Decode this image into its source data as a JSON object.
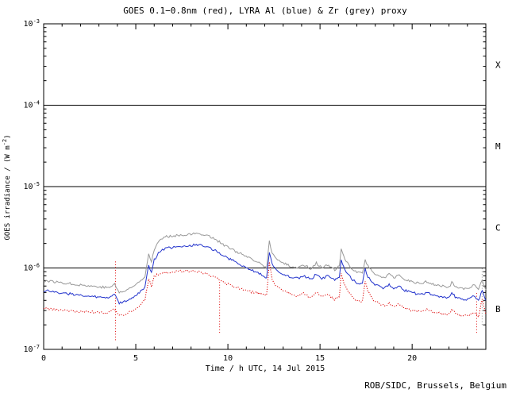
{
  "credit": "ROB/SIDC, Brussels, Belgium",
  "chart_data": {
    "type": "line",
    "title": "GOES 0.1−0.8nm (red), LYRA Al (blue) & Zr (grey) proxy",
    "xlabel": "Time / h UTC, 14 Jul 2015",
    "ylabel": "GOES irradiance / (W m^-2)",
    "ylabel_pre": "GOES irradiance / (W m",
    "ylabel_sup": "-2",
    "ylabel_post": ")",
    "x_range": [
      0,
      24
    ],
    "y_log_range": [
      -7,
      -3
    ],
    "x_major_ticks": [
      0,
      5,
      10,
      15,
      20
    ],
    "x_minor_step": 1,
    "y_ticks": [
      -7,
      -6,
      -5,
      -4,
      -3
    ],
    "hlines": [
      1e-06,
      1e-05,
      0.0001
    ],
    "flare_classes": [
      {
        "label": "X",
        "level": 0.000316
      },
      {
        "label": "M",
        "level": 3.16e-05
      },
      {
        "label": "C",
        "level": 3.16e-06
      },
      {
        "label": "B",
        "level": 3.16e-07
      }
    ],
    "x": [
      0,
      0.5,
      1,
      1.5,
      2,
      2.5,
      3,
      3.5,
      3.85,
      4.1,
      4.4,
      4.8,
      5.2,
      5.5,
      5.7,
      5.85,
      6,
      6.3,
      6.6,
      7,
      7.5,
      8,
      8.5,
      9,
      9.4,
      9.8,
      10.2,
      10.7,
      11.2,
      11.7,
      12.1,
      12.25,
      12.4,
      12.7,
      13,
      13.4,
      13.8,
      14.1,
      14.5,
      14.8,
      15.1,
      15.4,
      15.8,
      16.05,
      16.15,
      16.35,
      16.7,
      17,
      17.3,
      17.45,
      17.6,
      17.9,
      18.2,
      18.5,
      18.75,
      19,
      19.3,
      19.6,
      20,
      20.4,
      20.8,
      21.2,
      21.6,
      22,
      22.15,
      22.4,
      22.8,
      23.1,
      23.35,
      23.6,
      23.8,
      24
    ],
    "series": [
      {
        "name": "LYRA Zr proxy",
        "color": "#999999",
        "style": "solid",
        "values": [
          7e-07,
          6.8e-07,
          6.6e-07,
          6.4e-07,
          6.2e-07,
          6e-07,
          5.9e-07,
          5.7e-07,
          6.3e-07,
          5e-07,
          5.2e-07,
          5.8e-07,
          6.8e-07,
          8e-07,
          1.5e-06,
          1.2e-06,
          1.7e-06,
          2.2e-06,
          2.4e-06,
          2.5e-06,
          2.55e-06,
          2.6e-06,
          2.65e-06,
          2.45e-06,
          2.2e-06,
          1.9e-06,
          1.7e-06,
          1.5e-06,
          1.3e-06,
          1.15e-06,
          1e-06,
          2.2e-06,
          1.5e-06,
          1.25e-06,
          1.15e-06,
          1.05e-06,
          1e-06,
          1.1e-06,
          9.8e-07,
          1.15e-06,
          1e-06,
          1.08e-06,
          9.5e-07,
          1.05e-06,
          1.7e-06,
          1.25e-06,
          1e-06,
          9e-07,
          8.6e-07,
          1.25e-06,
          1.05e-06,
          8.8e-07,
          8e-07,
          7.6e-07,
          8.4e-07,
          7.6e-07,
          8e-07,
          7.2e-07,
          6.8e-07,
          6.4e-07,
          6.8e-07,
          6.2e-07,
          6e-07,
          5.8e-07,
          6.6e-07,
          5.8e-07,
          5.6e-07,
          5.5e-07,
          6.2e-07,
          5.3e-07,
          7.2e-07,
          5.4e-07
        ]
      },
      {
        "name": "LYRA Al proxy",
        "color": "#2233cc",
        "style": "solid",
        "values": [
          5.3e-07,
          5.1e-07,
          4.9e-07,
          4.8e-07,
          4.6e-07,
          4.5e-07,
          4.4e-07,
          4.2e-07,
          4.7e-07,
          3.7e-07,
          3.9e-07,
          4.3e-07,
          5e-07,
          5.9e-07,
          1.1e-06,
          8.8e-07,
          1.25e-06,
          1.6e-06,
          1.75e-06,
          1.8e-06,
          1.85e-06,
          1.9e-06,
          1.92e-06,
          1.78e-06,
          1.6e-06,
          1.4e-06,
          1.25e-06,
          1.1e-06,
          9.6e-07,
          8.5e-07,
          7.6e-07,
          1.6e-06,
          1.1e-06,
          9.2e-07,
          8.5e-07,
          7.8e-07,
          7.4e-07,
          8.1e-07,
          7.2e-07,
          8.5e-07,
          7.4e-07,
          8e-07,
          7e-07,
          7.8e-07,
          1.25e-06,
          9.2e-07,
          7.4e-07,
          6.6e-07,
          6.3e-07,
          9.8e-07,
          7.8e-07,
          6.5e-07,
          5.9e-07,
          5.6e-07,
          6.2e-07,
          5.6e-07,
          5.9e-07,
          5.3e-07,
          5e-07,
          4.7e-07,
          5e-07,
          4.6e-07,
          4.4e-07,
          4.3e-07,
          4.9e-07,
          4.3e-07,
          4.1e-07,
          4.1e-07,
          4.6e-07,
          3.9e-07,
          5.3e-07,
          4e-07
        ]
      },
      {
        "name": "GOES 0.1-0.8nm",
        "color": "#dd0000",
        "style": "dotted",
        "values": [
          3.2e-07,
          3.1e-07,
          3e-07,
          3e-07,
          2.9e-07,
          2.9e-07,
          2.8e-07,
          2.8e-07,
          3.1e-07,
          2.6e-07,
          2.7e-07,
          3e-07,
          3.4e-07,
          4e-07,
          7.5e-07,
          6e-07,
          8e-07,
          8.6e-07,
          8.8e-07,
          9e-07,
          9.2e-07,
          9.2e-07,
          9e-07,
          8.2e-07,
          7.4e-07,
          6.6e-07,
          6e-07,
          5.5e-07,
          5.1e-07,
          4.9e-07,
          4.7e-07,
          1.2e-06,
          7e-07,
          5.8e-07,
          5.2e-07,
          4.8e-07,
          4.5e-07,
          4.9e-07,
          4.3e-07,
          5e-07,
          4.4e-07,
          4.7e-07,
          4.1e-07,
          4.5e-07,
          8.5e-07,
          6e-07,
          4.5e-07,
          4e-07,
          3.8e-07,
          7e-07,
          5.2e-07,
          4.1e-07,
          3.6e-07,
          3.4e-07,
          3.7e-07,
          3.4e-07,
          3.6e-07,
          3.2e-07,
          3e-07,
          2.9e-07,
          3.1e-07,
          2.8e-07,
          2.75e-07,
          2.7e-07,
          3.1e-07,
          2.7e-07,
          2.6e-07,
          2.6e-07,
          2.9e-07,
          2.5e-07,
          4.2e-07,
          2.7e-07
        ]
      }
    ],
    "artifacts": [
      {
        "x": 3.9,
        "from": 1.3e-07,
        "to": 1.2e-06,
        "color": "#dd0000"
      },
      {
        "x": 9.55,
        "from": 1.6e-07,
        "to": 7e-07,
        "color": "#dd0000"
      },
      {
        "x": 23.5,
        "from": 1.6e-07,
        "to": 5e-07,
        "color": "#dd0000"
      },
      {
        "x": 23.8,
        "from": 2e-07,
        "to": 1e-06,
        "color": "#999999"
      }
    ]
  }
}
